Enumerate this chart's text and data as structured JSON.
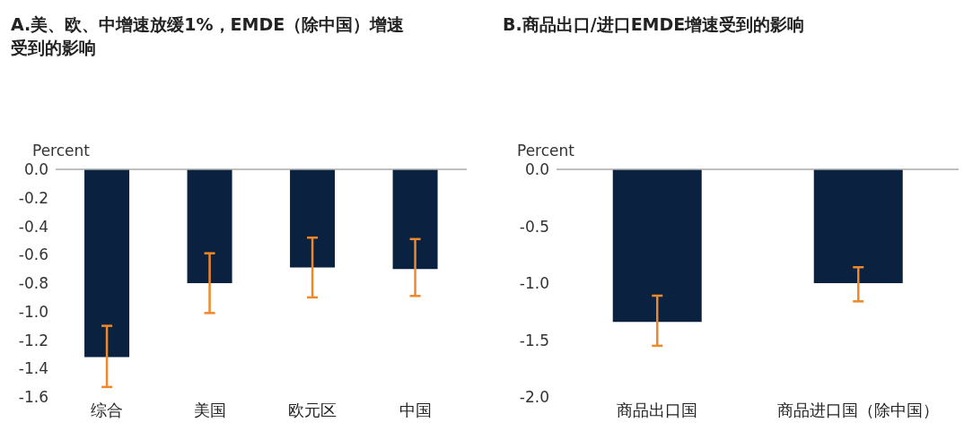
{
  "chart_data": [
    {
      "type": "bar",
      "title": "A.美、欧、中增速放缓1%，EMDE（除中国）增速受到的影响",
      "ylabel": "Percent",
      "categories": [
        "综合",
        "美国",
        "欧元区",
        "中国"
      ],
      "series": [
        {
          "color": "#0a2240",
          "values": [
            -1.32,
            -0.8,
            -0.69,
            -0.7
          ],
          "errors": [
            [
              -1.53,
              -1.1
            ],
            [
              -1.01,
              -0.59
            ],
            [
              -0.9,
              -0.48
            ],
            [
              -0.89,
              -0.49
            ]
          ]
        }
      ],
      "ylim": [
        -1.6,
        0
      ],
      "yticks": [
        {
          "value": 0,
          "label": "0.0"
        },
        -0.2,
        -0.4,
        -0.6,
        -0.8,
        {
          "value": -1,
          "label": "-1.0"
        },
        -1.2,
        -1.4,
        -1.6
      ],
      "grid": false,
      "legend": false
    },
    {
      "type": "bar",
      "title": "B.商品出口/进口EMDE增速受到的影响",
      "ylabel": "Percent",
      "categories": [
        "商品出口国",
        "商品进口国（除中国）"
      ],
      "series": [
        {
          "color": "#0a2240",
          "values": [
            -1.34,
            -1.0
          ],
          "errors": [
            [
              -1.55,
              -1.11
            ],
            [
              -1.16,
              -0.86
            ]
          ]
        }
      ],
      "ylim": [
        -2,
        0
      ],
      "yticks": [
        {
          "value": 0,
          "label": "0.0"
        },
        -0.5,
        {
          "value": -1,
          "label": "-1.0"
        },
        -1.5,
        {
          "value": -2,
          "label": "-2.0"
        }
      ],
      "grid": false,
      "legend": false
    }
  ]
}
